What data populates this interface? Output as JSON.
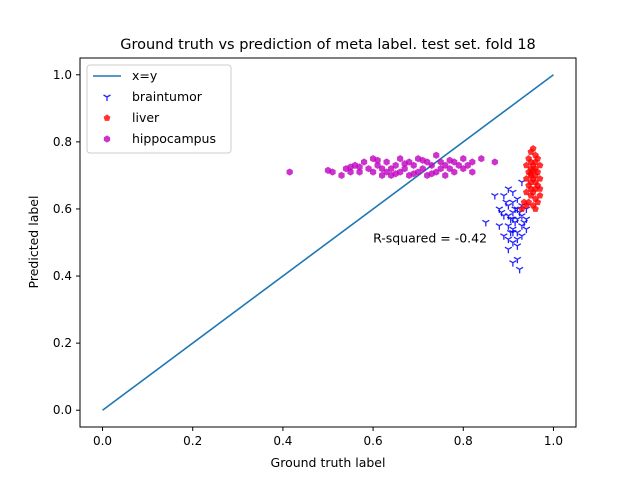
{
  "chart_data": {
    "type": "scatter",
    "title": "Ground truth vs prediction of meta label. test set. fold 18",
    "xlabel": "Ground truth label",
    "ylabel": "Predicted label",
    "xlim": [
      -0.05,
      1.05
    ],
    "ylim": [
      -0.05,
      1.05
    ],
    "xticks": [
      "0.0",
      "0.2",
      "0.4",
      "0.6",
      "0.8",
      "1.0"
    ],
    "yticks": [
      "0.0",
      "0.2",
      "0.4",
      "0.6",
      "0.8",
      "1.0"
    ],
    "grid": false,
    "legend_position": "top-left",
    "annotation": {
      "text": "R-squared = -0.42",
      "x": 0.6,
      "y": 0.5
    },
    "reference_line": {
      "name": "x=y",
      "x": [
        0,
        1
      ],
      "y": [
        0,
        1
      ],
      "color": "#1f77b4"
    },
    "series": [
      {
        "name": "braintumor",
        "marker": "tri-down",
        "color": "#0000ff",
        "points": [
          [
            0.85,
            0.56
          ],
          [
            0.87,
            0.64
          ],
          [
            0.88,
            0.6
          ],
          [
            0.88,
            0.55
          ],
          [
            0.89,
            0.64
          ],
          [
            0.89,
            0.58
          ],
          [
            0.89,
            0.52
          ],
          [
            0.9,
            0.66
          ],
          [
            0.9,
            0.61
          ],
          [
            0.9,
            0.58
          ],
          [
            0.9,
            0.55
          ],
          [
            0.9,
            0.51
          ],
          [
            0.9,
            0.48
          ],
          [
            0.91,
            0.65
          ],
          [
            0.91,
            0.62
          ],
          [
            0.91,
            0.59
          ],
          [
            0.91,
            0.57
          ],
          [
            0.91,
            0.54
          ],
          [
            0.91,
            0.5
          ],
          [
            0.91,
            0.44
          ],
          [
            0.92,
            0.63
          ],
          [
            0.92,
            0.6
          ],
          [
            0.92,
            0.57
          ],
          [
            0.92,
            0.53
          ],
          [
            0.92,
            0.49
          ],
          [
            0.92,
            0.45
          ],
          [
            0.925,
            0.42
          ],
          [
            0.93,
            0.61
          ],
          [
            0.93,
            0.58
          ],
          [
            0.93,
            0.55
          ],
          [
            0.93,
            0.52
          ],
          [
            0.93,
            0.68
          ],
          [
            0.935,
            0.56
          ],
          [
            0.94,
            0.6
          ],
          [
            0.94,
            0.57
          ],
          [
            0.94,
            0.54
          ],
          [
            0.895,
            0.62
          ],
          [
            0.905,
            0.53
          ],
          [
            0.915,
            0.56
          ],
          [
            0.925,
            0.59
          ],
          [
            0.905,
            0.57
          ],
          [
            0.915,
            0.6
          ],
          [
            0.885,
            0.59
          ],
          [
            0.92,
            0.51
          ],
          [
            0.91,
            0.53
          ]
        ]
      },
      {
        "name": "liver",
        "marker": "pentagon",
        "color": "#ff0000",
        "points": [
          [
            0.93,
            0.6
          ],
          [
            0.935,
            0.62
          ],
          [
            0.94,
            0.65
          ],
          [
            0.94,
            0.69
          ],
          [
            0.94,
            0.73
          ],
          [
            0.945,
            0.67
          ],
          [
            0.945,
            0.71
          ],
          [
            0.945,
            0.75
          ],
          [
            0.95,
            0.64
          ],
          [
            0.95,
            0.66
          ],
          [
            0.95,
            0.68
          ],
          [
            0.95,
            0.7
          ],
          [
            0.95,
            0.72
          ],
          [
            0.95,
            0.74
          ],
          [
            0.95,
            0.77
          ],
          [
            0.955,
            0.65
          ],
          [
            0.955,
            0.69
          ],
          [
            0.955,
            0.73
          ],
          [
            0.955,
            0.78
          ],
          [
            0.96,
            0.63
          ],
          [
            0.96,
            0.66
          ],
          [
            0.96,
            0.68
          ],
          [
            0.96,
            0.7
          ],
          [
            0.96,
            0.72
          ],
          [
            0.96,
            0.74
          ],
          [
            0.96,
            0.76
          ],
          [
            0.965,
            0.62
          ],
          [
            0.965,
            0.67
          ],
          [
            0.965,
            0.71
          ],
          [
            0.965,
            0.75
          ],
          [
            0.97,
            0.64
          ],
          [
            0.97,
            0.69
          ],
          [
            0.97,
            0.73
          ],
          [
            0.97,
            0.66
          ],
          [
            0.945,
            0.62
          ],
          [
            0.955,
            0.61
          ],
          [
            0.94,
            0.61
          ],
          [
            0.96,
            0.6
          ],
          [
            0.95,
            0.705
          ],
          [
            0.955,
            0.715
          ]
        ]
      },
      {
        "name": "hippocampus",
        "marker": "hexagon",
        "color": "#bf00bf",
        "points": [
          [
            0.415,
            0.71
          ],
          [
            0.5,
            0.715
          ],
          [
            0.51,
            0.71
          ],
          [
            0.53,
            0.7
          ],
          [
            0.54,
            0.72
          ],
          [
            0.55,
            0.71
          ],
          [
            0.56,
            0.73
          ],
          [
            0.57,
            0.71
          ],
          [
            0.58,
            0.74
          ],
          [
            0.59,
            0.72
          ],
          [
            0.6,
            0.71
          ],
          [
            0.6,
            0.75
          ],
          [
            0.61,
            0.73
          ],
          [
            0.62,
            0.72
          ],
          [
            0.62,
            0.7
          ],
          [
            0.63,
            0.74
          ],
          [
            0.64,
            0.72
          ],
          [
            0.64,
            0.7
          ],
          [
            0.65,
            0.73
          ],
          [
            0.66,
            0.71
          ],
          [
            0.66,
            0.75
          ],
          [
            0.67,
            0.72
          ],
          [
            0.68,
            0.74
          ],
          [
            0.68,
            0.7
          ],
          [
            0.69,
            0.73
          ],
          [
            0.7,
            0.71
          ],
          [
            0.7,
            0.75
          ],
          [
            0.71,
            0.72
          ],
          [
            0.72,
            0.74
          ],
          [
            0.72,
            0.7
          ],
          [
            0.73,
            0.73
          ],
          [
            0.74,
            0.71
          ],
          [
            0.74,
            0.76
          ],
          [
            0.75,
            0.72
          ],
          [
            0.75,
            0.74
          ],
          [
            0.76,
            0.73
          ],
          [
            0.76,
            0.7
          ],
          [
            0.77,
            0.72
          ],
          [
            0.78,
            0.74
          ],
          [
            0.78,
            0.71
          ],
          [
            0.79,
            0.73
          ],
          [
            0.8,
            0.72
          ],
          [
            0.8,
            0.75
          ],
          [
            0.81,
            0.73
          ],
          [
            0.82,
            0.71
          ],
          [
            0.82,
            0.74
          ],
          [
            0.84,
            0.75
          ],
          [
            0.87,
            0.74
          ],
          [
            0.57,
            0.725
          ],
          [
            0.65,
            0.705
          ],
          [
            0.69,
            0.705
          ],
          [
            0.73,
            0.705
          ],
          [
            0.77,
            0.745
          ],
          [
            0.63,
            0.71
          ],
          [
            0.61,
            0.745
          ],
          [
            0.55,
            0.725
          ],
          [
            0.67,
            0.735
          ],
          [
            0.71,
            0.745
          ]
        ]
      }
    ]
  }
}
